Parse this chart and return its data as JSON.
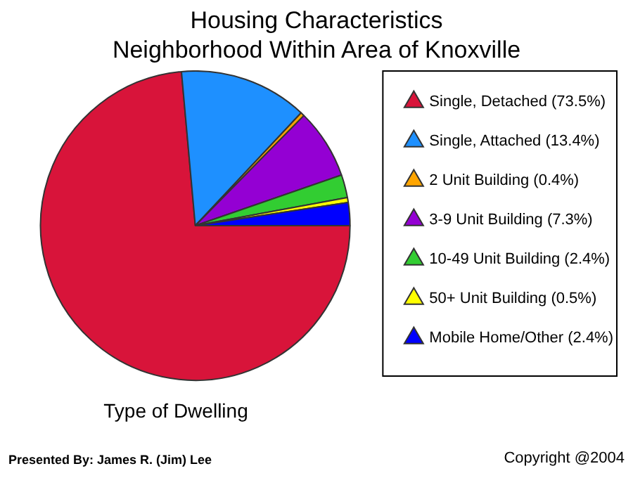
{
  "chart_data": {
    "type": "pie",
    "title": [
      "Housing Characteristics",
      "Neighborhood Within Area of Knoxville"
    ],
    "xlabel": "Type of Dwelling",
    "categories": [
      "Single, Detached (73.5%)",
      "Single, Attached (13.4%)",
      "2 Unit Building (0.4%)",
      "3-9 Unit Building (7.3%)",
      "10-49 Unit Building (2.4%)",
      "50+ Unit Building (0.5%)",
      "Mobile Home/Other (2.4%)"
    ],
    "values": [
      73.5,
      13.4,
      0.4,
      7.3,
      2.4,
      0.5,
      2.4
    ],
    "colors": [
      "#d8143a",
      "#1e90ff",
      "#ffa500",
      "#9400d3",
      "#32cd32",
      "#ffff00",
      "#0000ff"
    ],
    "legend": "right",
    "annotations": [
      "Presented By: James  R. (Jim) Lee",
      "Copyright @2004"
    ]
  }
}
